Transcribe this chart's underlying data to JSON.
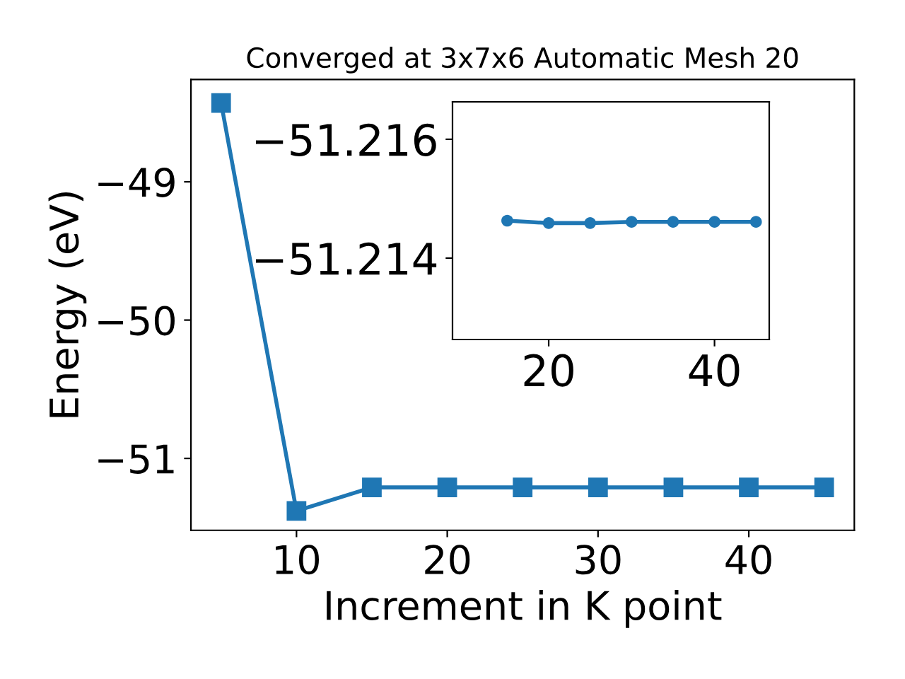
{
  "chart_data": [
    {
      "type": "line",
      "title": "Converged at 3x7x6 Automatic Mesh 20",
      "xlabel": "Increment in K point",
      "ylabel": "Energy (eV)",
      "x": [
        5,
        10,
        15,
        20,
        25,
        30,
        35,
        40,
        45
      ],
      "series": [
        {
          "color": "#1f77b4",
          "values": [
            -48.43,
            -51.38,
            -51.21,
            -51.21,
            -51.21,
            -51.21,
            -51.21,
            -51.21,
            -51.21
          ]
        }
      ],
      "marker": "square",
      "line_style": "solid",
      "xlim": [
        3,
        47
      ],
      "xticks": [
        10,
        20,
        30,
        40
      ],
      "ylim": [
        -51.52,
        -48.26
      ],
      "yticks": [
        {
          "value": -51,
          "label": "−51"
        },
        {
          "value": -50,
          "label": "−50"
        },
        {
          "value": -49,
          "label": "−49"
        }
      ],
      "grid": false,
      "legend": false
    },
    {
      "type": "line",
      "x": [
        15,
        20,
        25,
        30,
        35,
        40,
        45
      ],
      "series": [
        {
          "color": "#1f77b4",
          "values": [
            -51.21463,
            -51.21459,
            -51.21459,
            -51.21461,
            -51.21461,
            -51.21461,
            -51.21461
          ]
        }
      ],
      "marker": "circle",
      "line_style": "solid",
      "xlim": [
        8.4,
        46.6
      ],
      "xticks": [
        20,
        40
      ],
      "ylim": [
        -51.21263,
        -51.21663
      ],
      "yticks": [
        {
          "value": -51.216,
          "label": "−51.216"
        },
        {
          "value": -51.214,
          "label": "−51.214"
        }
      ],
      "grid": false,
      "legend": false
    }
  ]
}
